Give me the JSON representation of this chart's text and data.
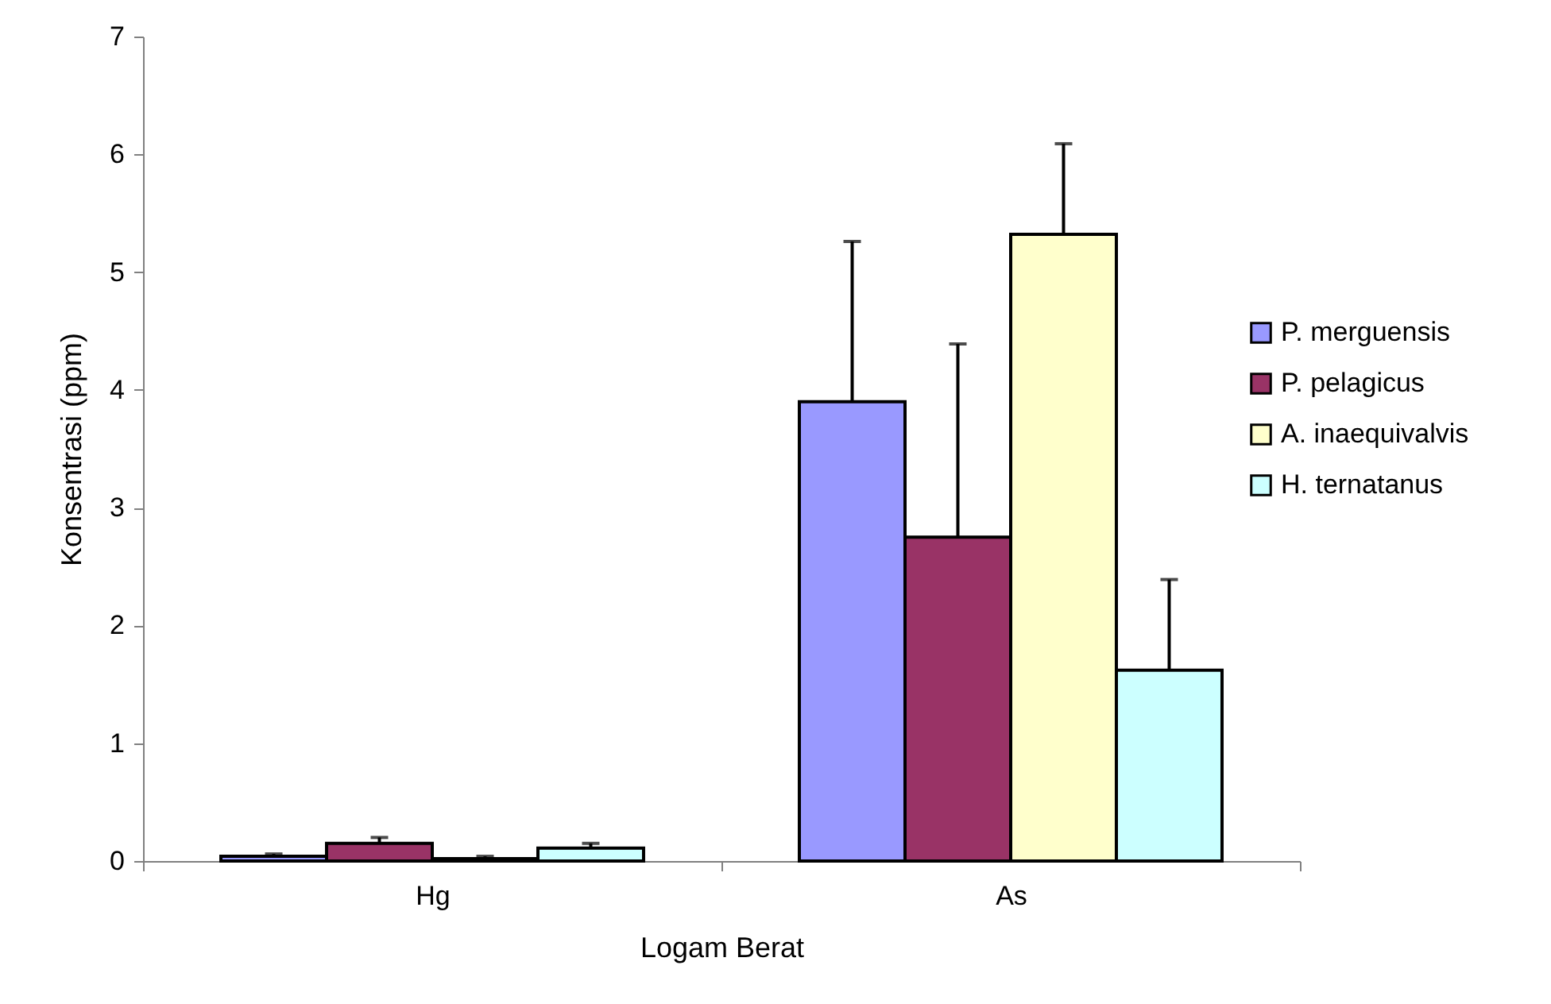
{
  "chart_data": {
    "type": "bar",
    "xlabel": "Logam Berat",
    "ylabel": "Konsentrasi (ppm)",
    "categories": [
      "Hg",
      "As"
    ],
    "series": [
      {
        "name": "P. merguensis",
        "color": "#9999ff",
        "values": [
          0.04,
          3.9
        ],
        "errors": [
          [
            0.04,
            0.06
          ],
          [
            3.9,
            5.26
          ]
        ]
      },
      {
        "name": "P. pelagicus",
        "color": "#993366",
        "values": [
          0.15,
          2.75
        ],
        "errors": [
          [
            0.15,
            0.2
          ],
          [
            2.75,
            4.39
          ]
        ]
      },
      {
        "name": "A. inaequivalvis",
        "color": "#ffffcc",
        "values": [
          0.02,
          5.32
        ],
        "errors": [
          [
            0.02,
            0.04
          ],
          [
            5.32,
            6.09
          ]
        ]
      },
      {
        "name": "H. ternatanus",
        "color": "#ccffff",
        "values": [
          0.11,
          1.62
        ],
        "errors": [
          [
            0.11,
            0.15
          ],
          [
            1.62,
            2.39
          ]
        ]
      }
    ],
    "ylim": [
      0,
      7
    ],
    "yticks": [
      0,
      1,
      2,
      3,
      4,
      5,
      6,
      7
    ],
    "grid": false,
    "legend": "right"
  }
}
